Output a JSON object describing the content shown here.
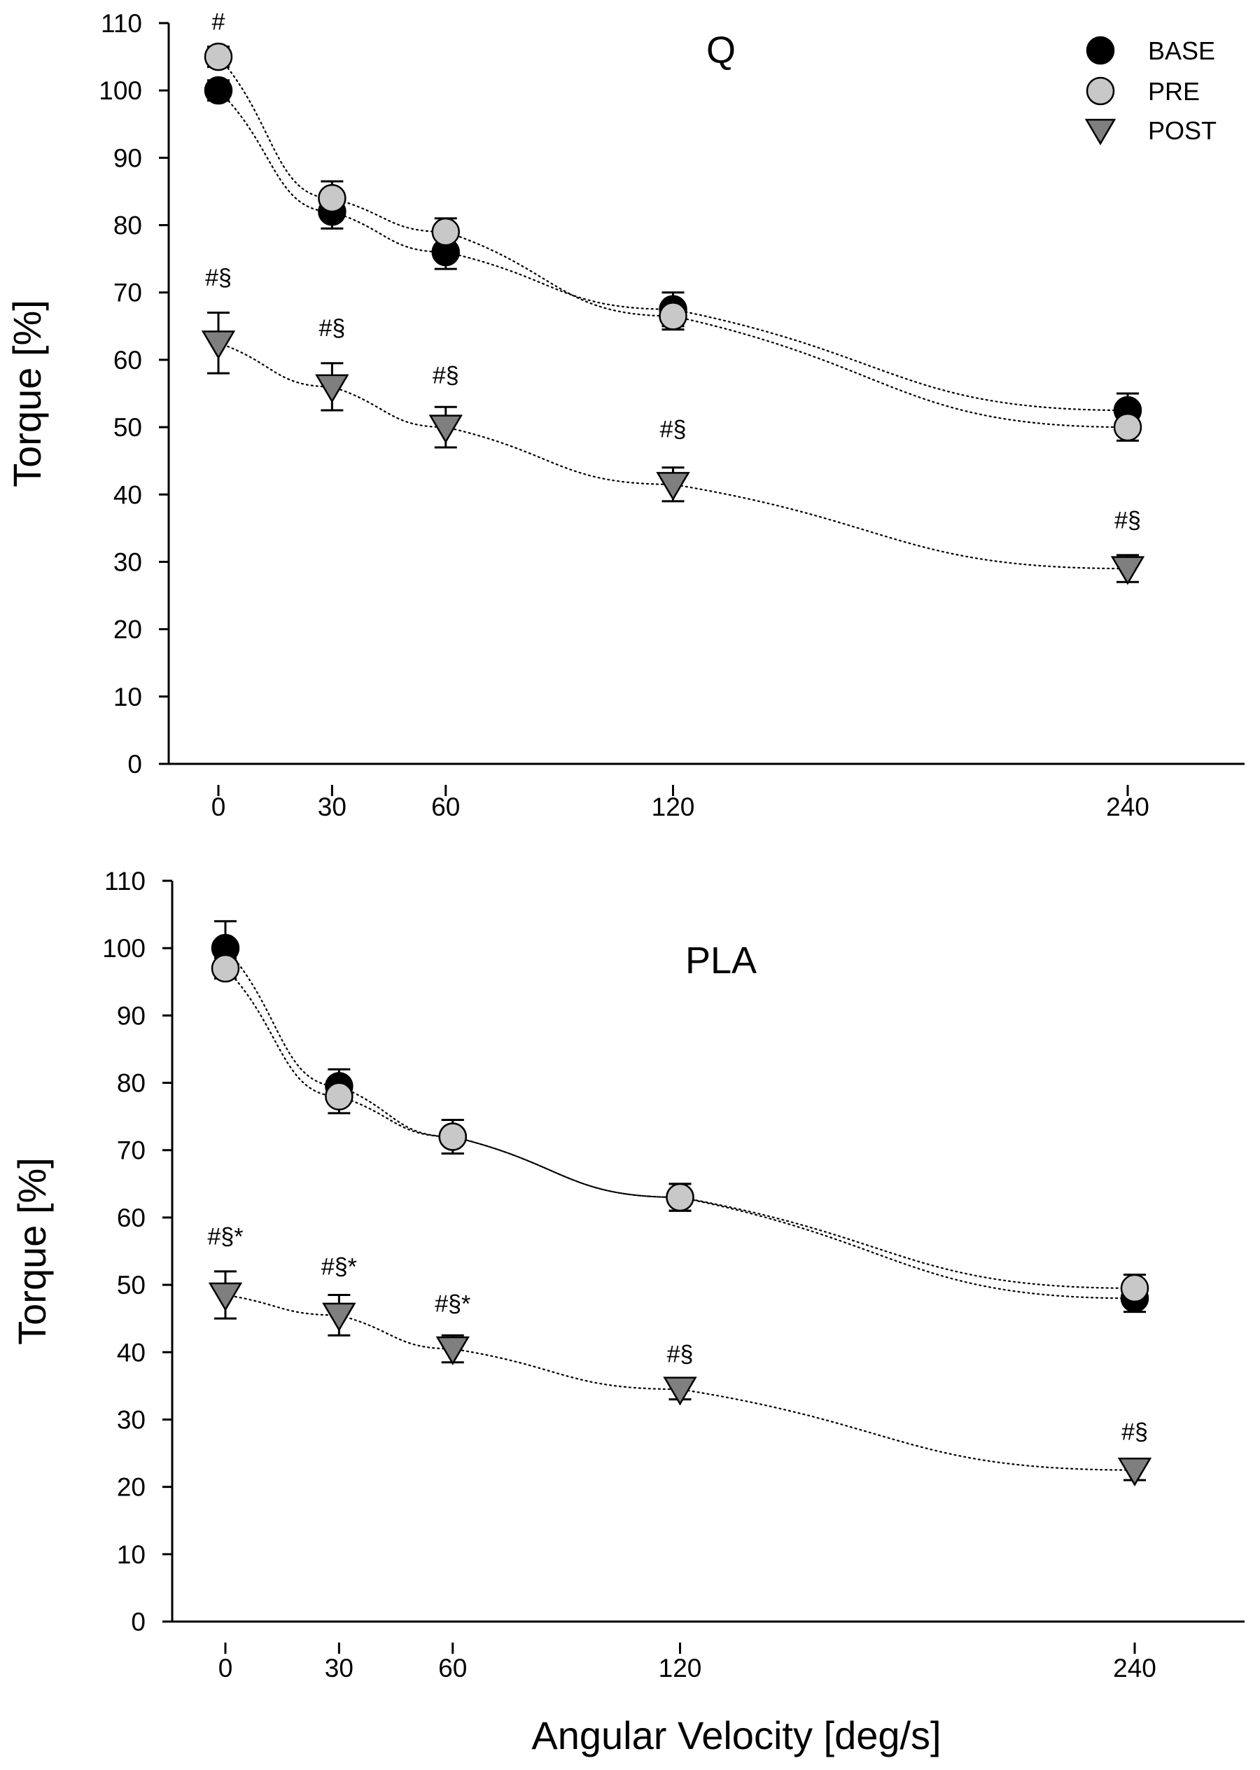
{
  "chart_data": [
    {
      "type": "scatter",
      "title": "Q",
      "xlabel": "",
      "ylabel": "Torque [%]",
      "ylim": [
        0,
        110
      ],
      "xlim": [
        -20,
        270
      ],
      "x_ticks": [
        0,
        30,
        60,
        120,
        240
      ],
      "y_ticks": [
        0,
        10,
        20,
        30,
        40,
        50,
        60,
        70,
        80,
        90,
        100,
        110
      ],
      "series": [
        {
          "name": "BASE",
          "marker": "circle",
          "color": "#000000",
          "x": [
            0,
            30,
            60,
            120,
            240
          ],
          "values": [
            100,
            82,
            76,
            67.5,
            52.5
          ],
          "err": [
            1.5,
            2.5,
            2.5,
            2.5,
            2.5
          ]
        },
        {
          "name": "PRE",
          "marker": "circle",
          "color": "#c8c8c8",
          "x": [
            0,
            30,
            60,
            120,
            240
          ],
          "values": [
            105,
            84,
            79,
            66.5,
            50
          ],
          "err": [
            1.5,
            2.5,
            2.0,
            2.0,
            2.0
          ]
        },
        {
          "name": "POST",
          "marker": "triangle-down",
          "color": "#7f7f7f",
          "x": [
            0,
            30,
            60,
            120,
            240
          ],
          "values": [
            62.5,
            56,
            50,
            41.5,
            29
          ],
          "err": [
            4.5,
            3.5,
            3.0,
            2.5,
            2.0
          ]
        }
      ],
      "annotations": [
        {
          "text": "#",
          "x": 0,
          "y": 109
        },
        {
          "text": "#§",
          "x": 0,
          "y": 71
        },
        {
          "text": "#§",
          "x": 30,
          "y": 63.5
        },
        {
          "text": "#§",
          "x": 60,
          "y": 56.5
        },
        {
          "text": "#§",
          "x": 120,
          "y": 48.5
        },
        {
          "text": "#§",
          "x": 240,
          "y": 35
        }
      ],
      "legend": [
        "BASE",
        "PRE",
        "POST"
      ]
    },
    {
      "type": "scatter",
      "title": "PLA",
      "xlabel": "Angular Velocity [deg/s]",
      "ylabel": "Torque [%]",
      "ylim": [
        0,
        110
      ],
      "xlim": [
        -20,
        270
      ],
      "x_ticks": [
        0,
        30,
        60,
        120,
        240
      ],
      "y_ticks": [
        0,
        10,
        20,
        30,
        40,
        50,
        60,
        70,
        80,
        90,
        100,
        110
      ],
      "series": [
        {
          "name": "BASE",
          "marker": "circle",
          "color": "#000000",
          "x": [
            0,
            30,
            60,
            120,
            240
          ],
          "values": [
            100,
            79.5,
            72,
            63,
            48
          ],
          "err": [
            4,
            2.5,
            2.5,
            2,
            2
          ]
        },
        {
          "name": "PRE",
          "marker": "circle",
          "color": "#c8c8c8",
          "x": [
            0,
            30,
            60,
            120,
            240
          ],
          "values": [
            97,
            78,
            72,
            63,
            49.5
          ],
          "err": [
            1.5,
            2.5,
            2.5,
            2,
            2
          ]
        },
        {
          "name": "POST",
          "marker": "triangle-down",
          "color": "#7f7f7f",
          "x": [
            0,
            30,
            60,
            120,
            240
          ],
          "values": [
            48.5,
            45.5,
            40.5,
            34.5,
            22.5
          ],
          "err": [
            3.5,
            3.0,
            2.0,
            1.5,
            1.5
          ]
        }
      ],
      "annotations": [
        {
          "text": "#§*",
          "x": 0,
          "y": 56
        },
        {
          "text": "#§*",
          "x": 30,
          "y": 51.5
        },
        {
          "text": "#§*",
          "x": 60,
          "y": 46
        },
        {
          "text": "#§",
          "x": 120,
          "y": 38.5
        },
        {
          "text": "#§",
          "x": 240,
          "y": 27
        }
      ]
    }
  ]
}
